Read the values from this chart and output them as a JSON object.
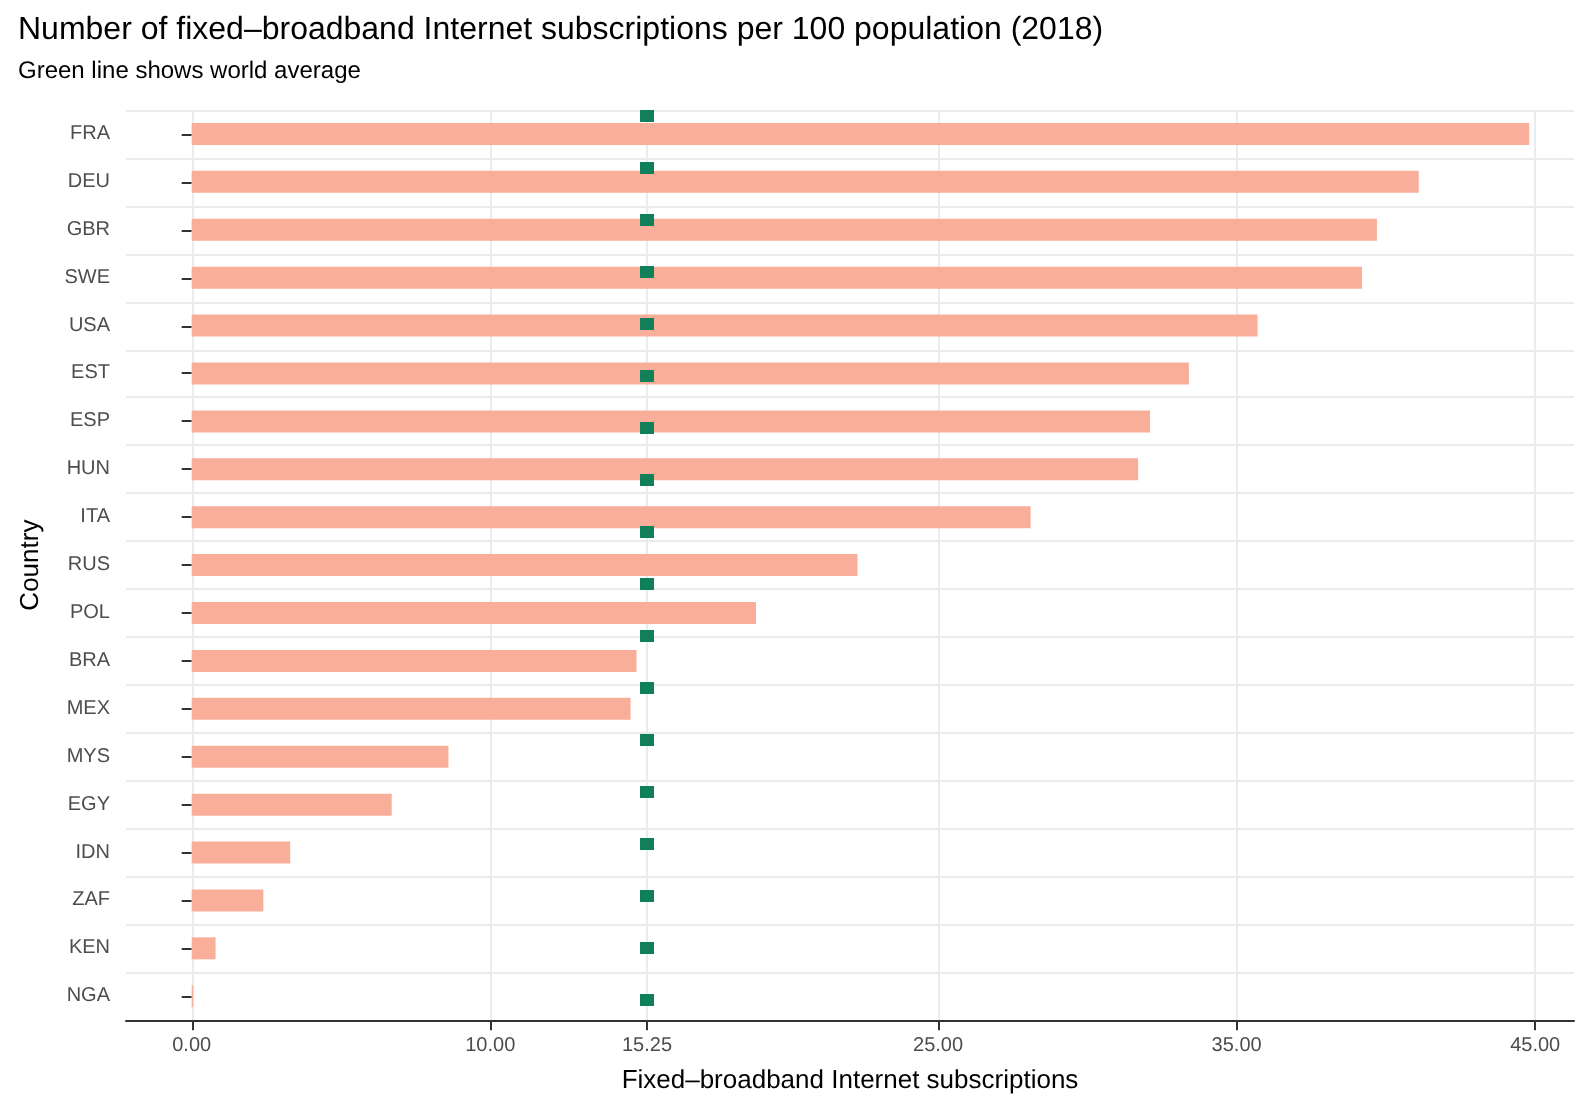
{
  "chart_data": {
    "type": "bar",
    "orientation": "horizontal",
    "title": "Number of fixed–broadband Internet subscriptions per 100 population (2018)",
    "subtitle": "Green line shows world average",
    "xlabel": "Fixed–broadband Internet subscriptions",
    "ylabel": "Country",
    "categories": [
      "FRA",
      "DEU",
      "GBR",
      "SWE",
      "USA",
      "EST",
      "ESP",
      "HUN",
      "ITA",
      "RUS",
      "POL",
      "BRA",
      "MEX",
      "MYS",
      "EGY",
      "IDN",
      "ZAF",
      "KEN",
      "NGA"
    ],
    "values": [
      44.8,
      41.1,
      39.7,
      39.2,
      35.7,
      33.4,
      32.1,
      31.7,
      28.1,
      22.3,
      18.9,
      14.9,
      14.7,
      8.6,
      6.7,
      3.3,
      2.4,
      0.8,
      0.05
    ],
    "color": "#f8ae99",
    "xlim": [
      -2.2,
      46.3
    ],
    "xticks": [
      {
        "value": 0,
        "label": "0.00"
      },
      {
        "value": 10,
        "label": "10.00"
      },
      {
        "value": 15.25,
        "label": "15.25"
      },
      {
        "value": 25,
        "label": "25.00"
      },
      {
        "value": 35,
        "label": "35.00"
      },
      {
        "value": 45,
        "label": "45.00"
      }
    ],
    "ref_lines": [
      {
        "axis": "x",
        "value": 15.25,
        "color": "#11805a",
        "line_style": "dotted"
      }
    ],
    "grid": true
  }
}
